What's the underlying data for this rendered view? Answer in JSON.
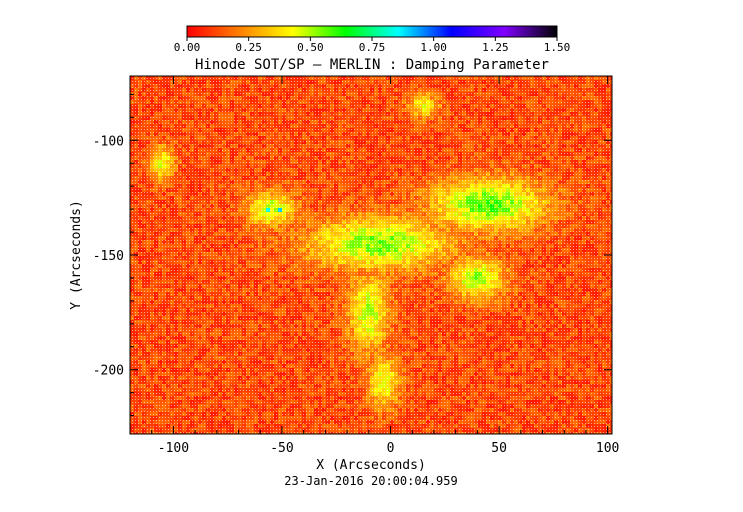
{
  "chart_data": {
    "type": "heatmap",
    "title": "Hinode SOT/SP – MERLIN : Damping Parameter",
    "xlabel": "X (Arcseconds)",
    "ylabel": "Y (Arcseconds)",
    "footer": "23-Jan-2016 20:00:04.959",
    "xlim": [
      -120,
      102
    ],
    "ylim": [
      -228,
      -72
    ],
    "xticks": [
      -100,
      -50,
      0,
      50,
      100
    ],
    "yticks": [
      -100,
      -150,
      -200
    ],
    "colorbar": {
      "min": 0.0,
      "max": 1.5,
      "ticks": [
        "0.00",
        "0.25",
        "0.50",
        "0.75",
        "1.00",
        "1.25",
        "1.50"
      ],
      "colormap": [
        "#ff0000",
        "#ff8000",
        "#ffff00",
        "#00ff00",
        "#00ffff",
        "#0000ff",
        "#8000ff",
        "#000000"
      ]
    },
    "background_level": 0.12,
    "regions": [
      {
        "x": -5,
        "y": -145,
        "rx": 35,
        "ry": 12,
        "level": 0.55
      },
      {
        "x": 45,
        "y": -128,
        "rx": 28,
        "ry": 12,
        "level": 0.58
      },
      {
        "x": -55,
        "y": -130,
        "rx": 12,
        "ry": 8,
        "level": 0.5
      },
      {
        "x": -10,
        "y": -175,
        "rx": 10,
        "ry": 18,
        "level": 0.48
      },
      {
        "x": -3,
        "y": -205,
        "rx": 8,
        "ry": 12,
        "level": 0.45
      },
      {
        "x": 40,
        "y": -160,
        "rx": 14,
        "ry": 10,
        "level": 0.5
      },
      {
        "x": -105,
        "y": -110,
        "rx": 6,
        "ry": 8,
        "level": 0.45
      },
      {
        "x": 15,
        "y": -85,
        "rx": 8,
        "ry": 6,
        "level": 0.4
      }
    ]
  }
}
